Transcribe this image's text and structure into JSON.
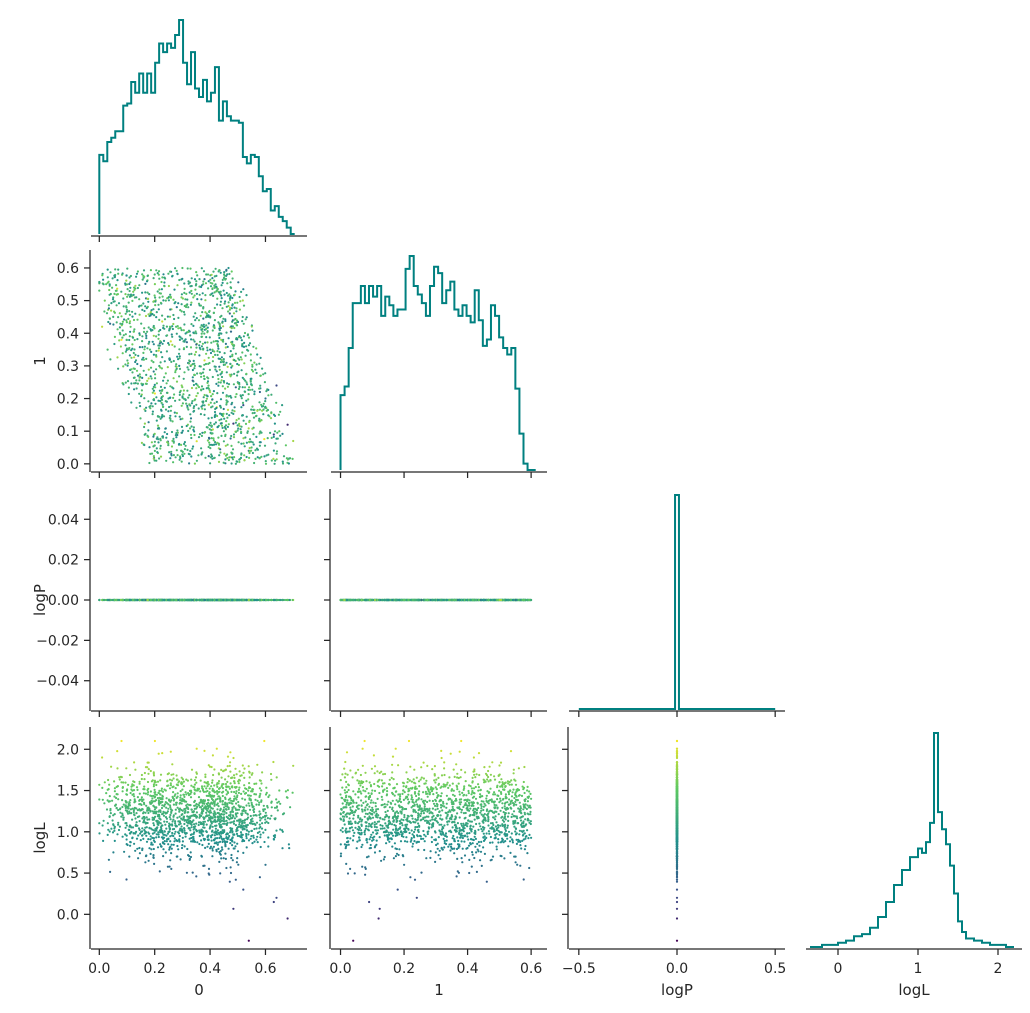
{
  "chart_data": {
    "type": "corner",
    "title": "",
    "parameters": [
      "0",
      "1",
      "logP",
      "logL"
    ],
    "colormap": [
      "#440154",
      "#3b528b",
      "#21918c",
      "#5ec962",
      "#fde725"
    ],
    "hist_color": "#008080",
    "marginals": [
      {
        "param": "0",
        "type": "step-histogram",
        "xlim": [
          -0.03,
          0.75
        ],
        "bin_edges": [
          0.0,
          0.0144,
          0.0288,
          0.0432,
          0.0576,
          0.072,
          0.0864,
          0.1008,
          0.1152,
          0.1296,
          0.144,
          0.1584,
          0.1728,
          0.1872,
          0.2016,
          0.216,
          0.2304,
          0.2448,
          0.2592,
          0.2736,
          0.288,
          0.3024,
          0.3168,
          0.3312,
          0.3456,
          0.36,
          0.3744,
          0.3888,
          0.4032,
          0.4176,
          0.432,
          0.4464,
          0.4608,
          0.4752,
          0.4896,
          0.504,
          0.5184,
          0.5328,
          0.5472,
          0.5616,
          0.576,
          0.5904,
          0.6048,
          0.6192,
          0.6336,
          0.648,
          0.6624,
          0.6768,
          0.6912,
          0.7056
        ],
        "counts": [
          0.37,
          0.34,
          0.43,
          0.45,
          0.48,
          0.48,
          0.6,
          0.61,
          0.71,
          0.66,
          0.75,
          0.66,
          0.75,
          0.66,
          0.8,
          0.89,
          0.85,
          0.89,
          0.87,
          0.93,
          1.0,
          0.8,
          0.7,
          0.85,
          0.68,
          0.64,
          0.72,
          0.62,
          0.66,
          0.78,
          0.53,
          0.62,
          0.55,
          0.53,
          0.53,
          0.52,
          0.36,
          0.33,
          0.37,
          0.36,
          0.27,
          0.2,
          0.21,
          0.11,
          0.13,
          0.08,
          0.06,
          0.03,
          0.0
        ]
      },
      {
        "param": "1",
        "type": "step-histogram",
        "xlim": [
          -0.03,
          0.65
        ],
        "bin_edges": [
          0.0,
          0.0128,
          0.0256,
          0.0384,
          0.0512,
          0.064,
          0.0768,
          0.0896,
          0.1024,
          0.1152,
          0.128,
          0.1408,
          0.1536,
          0.1664,
          0.1792,
          0.192,
          0.2048,
          0.2176,
          0.2304,
          0.2432,
          0.256,
          0.2688,
          0.2816,
          0.2944,
          0.3072,
          0.32,
          0.3328,
          0.3456,
          0.3584,
          0.3712,
          0.384,
          0.3968,
          0.4096,
          0.4224,
          0.4352,
          0.448,
          0.4608,
          0.4736,
          0.4864,
          0.4992,
          0.512,
          0.5248,
          0.5376,
          0.5504,
          0.5632,
          0.576,
          0.5888,
          0.6016,
          0.6144
        ],
        "counts": [
          0.35,
          0.39,
          0.57,
          0.78,
          0.78,
          0.86,
          0.78,
          0.86,
          0.81,
          0.86,
          0.72,
          0.81,
          0.77,
          0.72,
          0.75,
          0.75,
          0.94,
          1.0,
          0.86,
          0.82,
          0.78,
          0.72,
          0.86,
          0.95,
          0.92,
          0.78,
          0.84,
          0.88,
          0.75,
          0.72,
          0.77,
          0.72,
          0.69,
          0.84,
          0.7,
          0.58,
          0.61,
          0.77,
          0.72,
          0.62,
          0.57,
          0.54,
          0.57,
          0.38,
          0.17,
          0.03,
          0.0,
          0.0
        ]
      },
      {
        "param": "logP",
        "type": "step-histogram",
        "xlim": [
          -0.55,
          0.55
        ],
        "bin_edges": [
          -0.5,
          -0.03,
          -0.01,
          0.01,
          0.03,
          0.5
        ],
        "counts": [
          0.0,
          0.0,
          1.0,
          0.0,
          0.0
        ]
      },
      {
        "param": "logL",
        "type": "step-histogram",
        "xlim": [
          -0.4,
          2.3
        ],
        "bin_edges": [
          -0.35,
          -0.2,
          -0.1,
          0.0,
          0.1,
          0.2,
          0.3,
          0.4,
          0.5,
          0.6,
          0.7,
          0.8,
          0.9,
          1.0,
          1.05,
          1.1,
          1.15,
          1.2,
          1.25,
          1.3,
          1.35,
          1.4,
          1.45,
          1.5,
          1.55,
          1.6,
          1.7,
          1.8,
          1.9,
          2.0,
          2.1,
          2.2
        ],
        "counts": [
          0.0,
          0.01,
          0.01,
          0.02,
          0.03,
          0.05,
          0.06,
          0.09,
          0.14,
          0.21,
          0.29,
          0.36,
          0.42,
          0.46,
          0.44,
          0.49,
          0.58,
          1.0,
          0.63,
          0.55,
          0.48,
          0.38,
          0.25,
          0.12,
          0.07,
          0.04,
          0.03,
          0.02,
          0.01,
          0.01,
          0.0
        ]
      }
    ],
    "panels": [
      {
        "row": "1",
        "col": "0",
        "type": "scatter",
        "xlim": [
          -0.03,
          0.75
        ],
        "ylim": [
          -0.025,
          0.655
        ],
        "yticks": [
          0.0,
          0.1,
          0.2,
          0.3,
          0.4,
          0.5,
          0.6
        ]
      },
      {
        "row": "logP",
        "col": "0",
        "type": "scatter",
        "xlim": [
          -0.03,
          0.75
        ],
        "ylim": [
          -0.055,
          0.055
        ],
        "yticks": [
          -0.04,
          -0.02,
          0.0,
          0.02,
          0.04
        ]
      },
      {
        "row": "logP",
        "col": "1",
        "type": "scatter",
        "xlim": [
          -0.03,
          0.65
        ],
        "ylim": [
          -0.055,
          0.055
        ]
      },
      {
        "row": "logL",
        "col": "0",
        "type": "scatter",
        "xlim": [
          -0.03,
          0.75
        ],
        "ylim": [
          -0.42,
          2.27
        ],
        "yticks": [
          0.0,
          0.5,
          1.0,
          1.5,
          2.0
        ]
      },
      {
        "row": "logL",
        "col": "1",
        "type": "scatter",
        "xlim": [
          -0.03,
          0.65
        ],
        "ylim": [
          -0.42,
          2.27
        ]
      },
      {
        "row": "logL",
        "col": "logP",
        "type": "scatter",
        "xlim": [
          -0.55,
          0.55
        ],
        "ylim": [
          -0.42,
          2.27
        ]
      }
    ],
    "scatter_samples": {
      "0": [
        0.02,
        0.05,
        0.1,
        0.15,
        0.2,
        0.25,
        0.3,
        0.35,
        0.4,
        0.45,
        0.5,
        0.55,
        0.6,
        0.65,
        0.7,
        0.08,
        0.18,
        0.28,
        0.38,
        0.48,
        0.58,
        0.12,
        0.22,
        0.32,
        0.42,
        0.52,
        0.62,
        0.03,
        0.13,
        0.23,
        0.33,
        0.43,
        0.53,
        0.63,
        0.68,
        0.01,
        0.06,
        0.16,
        0.26,
        0.36,
        0.46,
        0.56,
        0.66,
        0.04,
        0.14,
        0.24,
        0.34,
        0.44,
        0.54,
        0.64
      ],
      "1": [
        0.5,
        0.45,
        0.55,
        0.3,
        0.58,
        0.2,
        0.6,
        0.4,
        0.35,
        0.1,
        0.25,
        0.05,
        0.2,
        0.1,
        0.07,
        0.38,
        0.52,
        0.48,
        0.15,
        0.33,
        0.22,
        0.28,
        0.41,
        0.12,
        0.55,
        0.18,
        0.14,
        0.35,
        0.46,
        0.08,
        0.3,
        0.26,
        0.36,
        0.09,
        0.12,
        0.42,
        0.53,
        0.57,
        0.03,
        0.44,
        0.21,
        0.31,
        0.18,
        0.32,
        0.27,
        0.5,
        0.16,
        0.38,
        0.04,
        0.24
      ],
      "logP": [
        0.0,
        0.0,
        0.0,
        0.0,
        0.0,
        0.0,
        0.0,
        0.0,
        0.0,
        0.0,
        0.0,
        0.0,
        0.0,
        0.0,
        0.0,
        0.0,
        0.0,
        0.0,
        0.0,
        0.0,
        0.0,
        0.0,
        0.0,
        0.0,
        0.0,
        0.0,
        0.0,
        0.0,
        0.0,
        0.0,
        0.0,
        0.0,
        0.0,
        0.0,
        0.0,
        0.0,
        0.0,
        0.0,
        0.0,
        0.0,
        0.0,
        0.0,
        0.0,
        0.0,
        0.0,
        0.0,
        0.0,
        0.0,
        0.0,
        0.0
      ],
      "logL": [
        1.6,
        1.2,
        1.45,
        0.9,
        1.3,
        1.0,
        1.4,
        1.1,
        0.8,
        1.25,
        0.95,
        1.35,
        0.6,
        1.5,
        1.8,
        2.1,
        1.15,
        0.7,
        1.05,
        1.55,
        0.45,
        1.28,
        0.85,
        1.62,
        1.12,
        0.3,
        1.7,
        1.38,
        0.98,
        1.22,
        0.75,
        1.48,
        1.08,
        0.15,
        -0.05,
        1.9,
        1.33,
        1.18,
        0.55,
        1.42,
        0.88,
        1.58,
        1.02,
        1.26,
        0.68,
        1.36,
        0.92,
        1.75,
        -0.32,
        0.2
      ]
    },
    "axes": {
      "bottom_labels": [
        "0",
        "1",
        "logP",
        "logL"
      ],
      "left_labels": [
        "1",
        "logP",
        "logL"
      ],
      "xticks": {
        "0": [
          0.0,
          0.2,
          0.4,
          0.6
        ],
        "1": [
          0.0,
          0.2,
          0.4,
          0.6
        ],
        "logP": [
          -0.5,
          0.0,
          0.5
        ],
        "logL": [
          0,
          1,
          2
        ]
      },
      "xtick_labels": {
        "0": [
          "0.0",
          "0.2",
          "0.4",
          "0.6"
        ],
        "1": [
          "0.0",
          "0.2",
          "0.4",
          "0.6"
        ],
        "logP": [
          "−0.5",
          "0.0",
          "0.5"
        ],
        "logL": [
          "0",
          "1",
          "2"
        ]
      },
      "ytick_labels": {
        "1": [
          "0.0",
          "0.1",
          "0.2",
          "0.3",
          "0.4",
          "0.5",
          "0.6"
        ],
        "logP": [
          "−0.04",
          "−0.02",
          "0.00",
          "0.02",
          "0.04"
        ],
        "logL": [
          "0.0",
          "0.5",
          "1.0",
          "1.5",
          "2.0"
        ]
      }
    }
  }
}
